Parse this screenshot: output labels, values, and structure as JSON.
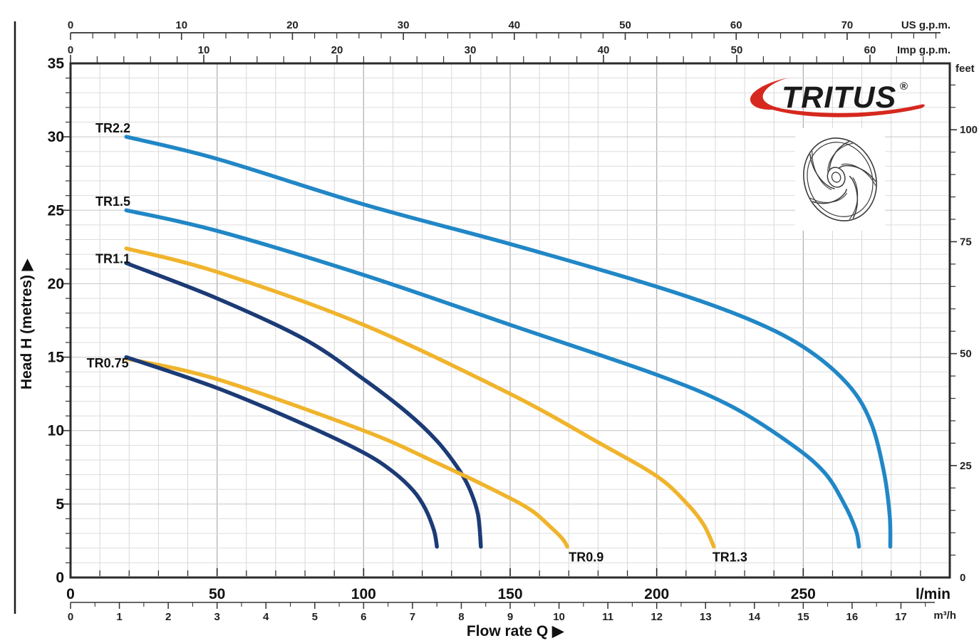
{
  "labels": {
    "flow_full": "Flow rate  Q  ▶",
    "head_full": "Head H  (metres)  ▶"
  },
  "logo": {
    "text": "TRITUS",
    "registered": "®",
    "text_color": "#1b4796",
    "swoosh_color": "#d6281e"
  },
  "chart_data": {
    "type": "line",
    "description": "Pump performance curves: Head H (metres) versus Flow rate Q",
    "x_axes": {
      "lmin": {
        "unit": "l/min",
        "min": 0,
        "max": 300,
        "major_tick_labels": [
          0,
          50,
          100,
          150,
          200,
          250
        ],
        "minor_step": 10
      },
      "m3h": {
        "unit": "m³/h",
        "min": 0,
        "max": 17.5,
        "major_tick_labels": [
          0,
          1,
          2,
          3,
          4,
          5,
          6,
          7,
          8,
          9,
          10,
          11,
          12,
          13,
          14,
          15,
          16,
          17
        ],
        "minor_step": 0.5,
        "lmin_per_unit": 16.6667
      },
      "us_gpm": {
        "unit": "US g.p.m.",
        "major_tick_labels": [
          0,
          10,
          20,
          30,
          40,
          50,
          60,
          70
        ],
        "minor_step": 2,
        "minor_max": 78,
        "lmin_per_unit": 3.7854
      },
      "imp_gpm": {
        "unit": "Imp g.p.m.",
        "major_tick_labels": [
          0,
          10,
          20,
          30,
          40,
          50,
          60
        ],
        "minor_step": 2,
        "minor_max": 64,
        "lmin_per_unit": 4.5461
      }
    },
    "y_axes": {
      "metres": {
        "unit": "m",
        "min": 0,
        "max": 35,
        "major_tick_labels": [
          0,
          5,
          10,
          15,
          20,
          25,
          30,
          35
        ],
        "minor_step": 1
      },
      "feet": {
        "unit": "feet",
        "major_tick_labels": [
          0,
          25,
          50,
          75,
          100
        ],
        "minor_step": 5,
        "minor_max": 110,
        "m_per_unit": 0.3048
      }
    },
    "grid": {
      "x_minor_step_lmin": 10,
      "x_major_step_lmin": 50,
      "y_minor_step_m": 1,
      "y_major_step_m": 5
    },
    "series": [
      {
        "name": "TR2.2",
        "color": "#2187c6",
        "label_q": 8.5,
        "label_h": 30.3,
        "label_anchor": "start",
        "points": [
          [
            19,
            30
          ],
          [
            50,
            28.5
          ],
          [
            100,
            25.4
          ],
          [
            150,
            22.7
          ],
          [
            200,
            19.8
          ],
          [
            230,
            17.7
          ],
          [
            250,
            15.7
          ],
          [
            265,
            13.2
          ],
          [
            273,
            10.6
          ],
          [
            277.5,
            7.2
          ],
          [
            279.5,
            4.2
          ],
          [
            279.7,
            2.1
          ]
        ]
      },
      {
        "name": "TR1.5",
        "color": "#2187c6",
        "label_q": 8.5,
        "label_h": 25.3,
        "label_anchor": "start",
        "points": [
          [
            19,
            25
          ],
          [
            50,
            23.6
          ],
          [
            100,
            20.6
          ],
          [
            150,
            17.2
          ],
          [
            200,
            13.8
          ],
          [
            225,
            11.7
          ],
          [
            245,
            9.2
          ],
          [
            257,
            7.2
          ],
          [
            264,
            5.0
          ],
          [
            268,
            3.2
          ],
          [
            269,
            2.1
          ]
        ]
      },
      {
        "name": "TR1.3",
        "color": "#f0b42c",
        "label_q": 219,
        "label_h": 1.1,
        "label_anchor": "start",
        "points": [
          [
            19,
            22.4
          ],
          [
            50,
            20.8
          ],
          [
            100,
            17.2
          ],
          [
            150,
            12.5
          ],
          [
            180,
            9.2
          ],
          [
            200,
            6.9
          ],
          [
            210,
            5.1
          ],
          [
            216,
            3.6
          ],
          [
            219.5,
            2.1
          ]
        ]
      },
      {
        "name": "TR1.1",
        "color": "#1c3b76",
        "label_q": 8.5,
        "label_h": 21.4,
        "label_anchor": "start",
        "points": [
          [
            19,
            21.4
          ],
          [
            50,
            19.0
          ],
          [
            80,
            16.2
          ],
          [
            100,
            13.5
          ],
          [
            115,
            11.2
          ],
          [
            125,
            9.3
          ],
          [
            132,
            7.5
          ],
          [
            136,
            6.1
          ],
          [
            139,
            4.3
          ],
          [
            140,
            2.1
          ]
        ]
      },
      {
        "name": "TR0.9",
        "color": "#f0b42c",
        "label_q": 170,
        "label_h": 1.1,
        "label_anchor": "start",
        "points": [
          [
            19,
            14.9
          ],
          [
            50,
            13.5
          ],
          [
            100,
            10.0
          ],
          [
            125,
            7.8
          ],
          [
            145,
            5.9
          ],
          [
            157,
            4.6
          ],
          [
            164,
            3.4
          ],
          [
            168,
            2.6
          ],
          [
            169.5,
            2.1
          ]
        ]
      },
      {
        "name": "TR0.75",
        "color": "#1c3b76",
        "label_q": 5.5,
        "label_h": 14.3,
        "label_anchor": "start",
        "points": [
          [
            19,
            15.0
          ],
          [
            50,
            12.9
          ],
          [
            80,
            10.4
          ],
          [
            100,
            8.5
          ],
          [
            110,
            7.2
          ],
          [
            117,
            5.9
          ],
          [
            121,
            4.7
          ],
          [
            124,
            3.2
          ],
          [
            125,
            2.1
          ]
        ]
      }
    ]
  }
}
